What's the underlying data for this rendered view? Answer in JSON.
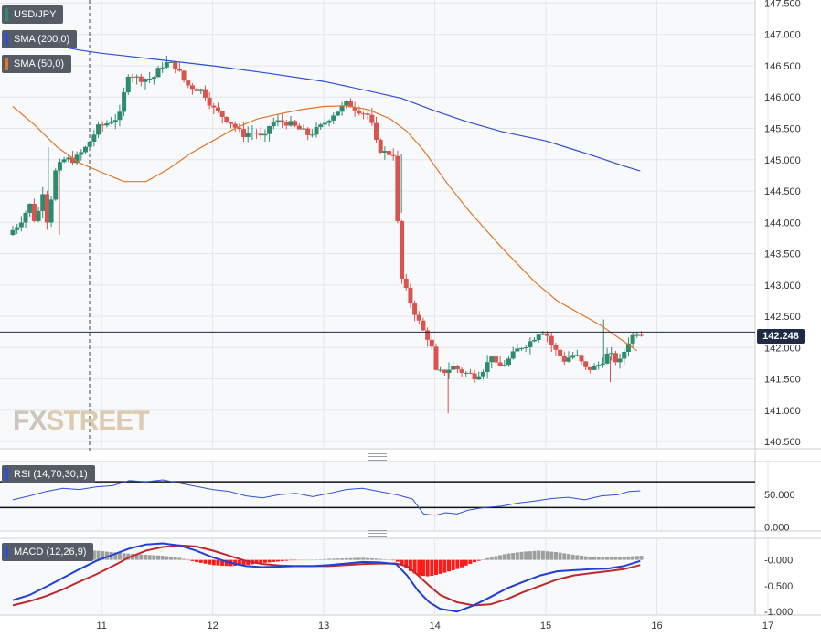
{
  "legend": {
    "symbol": "USD/JPY",
    "sma200_label": "SMA (200,0)",
    "sma50_label": "SMA (50,0)",
    "rsi_label": "RSI (14,70,30,1)",
    "macd_label": "MACD (12,26,9)"
  },
  "last_price_label": "142.248",
  "logo": {
    "fx": "FX",
    "street": "STREET"
  },
  "colors": {
    "bull": "#2e8b6e",
    "bear": "#d9534f",
    "sma200": "#2e4fd6",
    "sma50": "#e0762a",
    "rsi": "#2e4fd6",
    "macd_line": "#1f3fd6",
    "signal_line": "#c0282d",
    "hist_pos": "#9e9e9e",
    "hist_neg": "#ff1a1a"
  },
  "chart_data": [
    {
      "type": "candlestick",
      "symbol": "USD/JPY",
      "ylim": [
        140.4,
        147.55
      ],
      "y_ticks": [
        "147.500",
        "147.000",
        "146.500",
        "146.000",
        "145.500",
        "145.000",
        "144.500",
        "144.000",
        "143.500",
        "143.000",
        "142.500",
        "142.000",
        "141.500",
        "141.000",
        "140.500"
      ],
      "y_tick_values": [
        147.5,
        147.0,
        146.5,
        146.0,
        145.5,
        145.0,
        144.5,
        144.0,
        143.5,
        143.0,
        142.5,
        142.0,
        141.5,
        141.0,
        140.5
      ],
      "x_ticks": [
        "11",
        "12",
        "13",
        "14",
        "15",
        "16",
        "17"
      ],
      "x_tick_positions": [
        11,
        12,
        13,
        14,
        15,
        16,
        17
      ],
      "x_range": [
        10.2,
        17.0
      ],
      "last_price": 142.248,
      "anchors": [
        [
          10.2,
          143.8
        ],
        [
          10.3,
          144.0
        ],
        [
          10.4,
          144.3
        ],
        [
          10.45,
          143.9
        ],
        [
          10.5,
          144.6
        ],
        [
          10.55,
          144.0
        ],
        [
          10.62,
          144.8
        ],
        [
          10.7,
          145.0
        ],
        [
          10.8,
          145.0
        ],
        [
          10.9,
          145.2
        ],
        [
          11.0,
          145.5
        ],
        [
          11.1,
          145.6
        ],
        [
          11.2,
          145.7
        ],
        [
          11.28,
          146.4
        ],
        [
          11.35,
          146.3
        ],
        [
          11.5,
          146.3
        ],
        [
          11.6,
          146.55
        ],
        [
          11.7,
          146.5
        ],
        [
          11.8,
          146.2
        ],
        [
          11.95,
          146.1
        ],
        [
          12.05,
          145.8
        ],
        [
          12.2,
          145.6
        ],
        [
          12.3,
          145.4
        ],
        [
          12.42,
          145.45
        ],
        [
          12.5,
          145.3
        ],
        [
          12.55,
          145.55
        ],
        [
          12.6,
          145.6
        ],
        [
          12.7,
          145.6
        ],
        [
          12.8,
          145.5
        ],
        [
          12.9,
          145.4
        ],
        [
          13.0,
          145.5
        ],
        [
          13.1,
          145.7
        ],
        [
          13.25,
          145.9
        ],
        [
          13.35,
          145.8
        ],
        [
          13.45,
          145.7
        ],
        [
          13.52,
          145.2
        ],
        [
          13.6,
          145.1
        ],
        [
          13.68,
          145.1
        ],
        [
          13.72,
          143.2
        ],
        [
          13.8,
          142.8
        ],
        [
          13.85,
          142.6
        ],
        [
          13.92,
          142.3
        ],
        [
          14.0,
          142.1
        ],
        [
          14.05,
          141.6
        ],
        [
          14.1,
          141.6
        ],
        [
          14.2,
          141.7
        ],
        [
          14.3,
          141.6
        ],
        [
          14.4,
          141.55
        ],
        [
          14.5,
          141.7
        ],
        [
          14.55,
          141.9
        ],
        [
          14.6,
          141.65
        ],
        [
          14.7,
          141.8
        ],
        [
          14.8,
          142.0
        ],
        [
          14.9,
          142.1
        ],
        [
          15.0,
          142.3
        ],
        [
          15.05,
          142.2
        ],
        [
          15.1,
          142.0
        ],
        [
          15.2,
          141.8
        ],
        [
          15.3,
          141.9
        ],
        [
          15.4,
          141.65
        ],
        [
          15.5,
          141.7
        ],
        [
          15.6,
          141.9
        ],
        [
          15.7,
          141.75
        ],
        [
          15.78,
          142.1
        ],
        [
          15.85,
          142.25
        ]
      ],
      "highlights": [
        [
          10.52,
          145.2
        ],
        [
          10.62,
          143.8
        ],
        [
          13.7,
          145.1
        ],
        [
          13.78,
          142.9
        ],
        [
          14.12,
          140.95
        ],
        [
          15.52,
          142.45
        ],
        [
          15.58,
          141.45
        ]
      ]
    },
    {
      "type": "line",
      "name": "SMA (200,0)",
      "x": [
        10.2,
        10.5,
        10.8,
        11.0,
        11.5,
        12.0,
        12.5,
        13.0,
        13.4,
        13.7,
        14.0,
        14.3,
        14.6,
        15.0,
        15.4,
        15.7,
        15.85
      ],
      "y": [
        147.0,
        146.85,
        146.75,
        146.7,
        146.6,
        146.5,
        146.38,
        146.25,
        146.1,
        145.98,
        145.78,
        145.6,
        145.45,
        145.3,
        145.08,
        144.9,
        144.82
      ]
    },
    {
      "type": "line",
      "name": "SMA (50,0)",
      "x": [
        10.2,
        10.4,
        10.6,
        10.8,
        11.0,
        11.2,
        11.4,
        11.6,
        11.8,
        12.0,
        12.2,
        12.4,
        12.6,
        12.8,
        13.0,
        13.2,
        13.4,
        13.6,
        13.75,
        13.9,
        14.1,
        14.3,
        14.6,
        14.9,
        15.1,
        15.3,
        15.5,
        15.7,
        15.82
      ],
      "y": [
        145.85,
        145.55,
        145.2,
        144.95,
        144.8,
        144.65,
        144.65,
        144.85,
        145.1,
        145.3,
        145.5,
        145.65,
        145.73,
        145.8,
        145.85,
        145.86,
        145.8,
        145.65,
        145.45,
        145.15,
        144.65,
        144.2,
        143.6,
        143.05,
        142.75,
        142.55,
        142.35,
        142.1,
        141.95
      ]
    },
    {
      "type": "line",
      "name": "RSI (14,70,30,1)",
      "ylim": [
        -5,
        100
      ],
      "y_ticks": [
        "50.000",
        "0.000"
      ],
      "y_tick_values": [
        50,
        0
      ],
      "levels": [
        70,
        30
      ],
      "x": [
        10.2,
        10.35,
        10.5,
        10.65,
        10.8,
        10.95,
        11.1,
        11.25,
        11.4,
        11.55,
        11.7,
        11.85,
        12.0,
        12.15,
        12.3,
        12.45,
        12.6,
        12.75,
        12.9,
        13.05,
        13.2,
        13.35,
        13.5,
        13.65,
        13.72,
        13.8,
        13.9,
        14.0,
        14.1,
        14.2,
        14.3,
        14.45,
        14.6,
        14.75,
        14.9,
        15.05,
        15.2,
        15.35,
        15.5,
        15.65,
        15.75,
        15.85
      ],
      "y": [
        42,
        48,
        55,
        60,
        58,
        62,
        64,
        72,
        70,
        73,
        68,
        63,
        58,
        55,
        48,
        45,
        50,
        52,
        47,
        52,
        58,
        60,
        55,
        50,
        47,
        43,
        20,
        18,
        22,
        20,
        26,
        30,
        32,
        37,
        40,
        44,
        46,
        42,
        48,
        50,
        55,
        56
      ]
    },
    {
      "type": "macd",
      "name": "MACD (12,26,9)",
      "ylim": [
        -1.05,
        0.4
      ],
      "y_ticks": [
        "-0.000",
        "-0.500",
        "-1.000"
      ],
      "y_tick_values": [
        0,
        -0.5,
        -1.0
      ],
      "x": [
        10.2,
        10.35,
        10.5,
        10.65,
        10.8,
        10.95,
        11.1,
        11.25,
        11.4,
        11.55,
        11.7,
        11.85,
        12.0,
        12.15,
        12.3,
        12.45,
        12.6,
        12.75,
        12.9,
        13.05,
        13.2,
        13.35,
        13.5,
        13.65,
        13.75,
        13.85,
        13.95,
        14.05,
        14.2,
        14.35,
        14.5,
        14.65,
        14.8,
        14.95,
        15.1,
        15.25,
        15.4,
        15.55,
        15.7,
        15.85
      ],
      "macd": [
        -0.78,
        -0.68,
        -0.52,
        -0.35,
        -0.18,
        -0.02,
        0.1,
        0.22,
        0.3,
        0.32,
        0.28,
        0.18,
        0.05,
        -0.05,
        -0.12,
        -0.14,
        -0.13,
        -0.12,
        -0.12,
        -0.1,
        -0.07,
        -0.04,
        -0.05,
        -0.08,
        -0.3,
        -0.6,
        -0.82,
        -0.95,
        -1.0,
        -0.88,
        -0.72,
        -0.55,
        -0.42,
        -0.3,
        -0.22,
        -0.2,
        -0.18,
        -0.17,
        -0.12,
        -0.02
      ],
      "signal": [
        -0.88,
        -0.8,
        -0.7,
        -0.57,
        -0.42,
        -0.28,
        -0.12,
        0.05,
        0.18,
        0.25,
        0.28,
        0.26,
        0.18,
        0.08,
        -0.02,
        -0.08,
        -0.11,
        -0.12,
        -0.12,
        -0.12,
        -0.1,
        -0.08,
        -0.07,
        -0.07,
        -0.12,
        -0.3,
        -0.5,
        -0.68,
        -0.82,
        -0.88,
        -0.86,
        -0.76,
        -0.62,
        -0.5,
        -0.38,
        -0.3,
        -0.26,
        -0.22,
        -0.18,
        -0.1
      ],
      "histogram": [
        0.05,
        0.08,
        0.12,
        0.16,
        0.18,
        0.18,
        0.15,
        0.12,
        0.1,
        0.08,
        0.04,
        -0.04,
        -0.1,
        -0.12,
        -0.1,
        -0.06,
        -0.03,
        0.0,
        0.0,
        0.02,
        0.03,
        0.04,
        0.02,
        -0.01,
        -0.18,
        -0.3,
        -0.32,
        -0.27,
        -0.18,
        -0.05,
        0.05,
        0.12,
        0.16,
        0.18,
        0.15,
        0.1,
        0.06,
        0.05,
        0.06,
        0.08
      ]
    }
  ]
}
